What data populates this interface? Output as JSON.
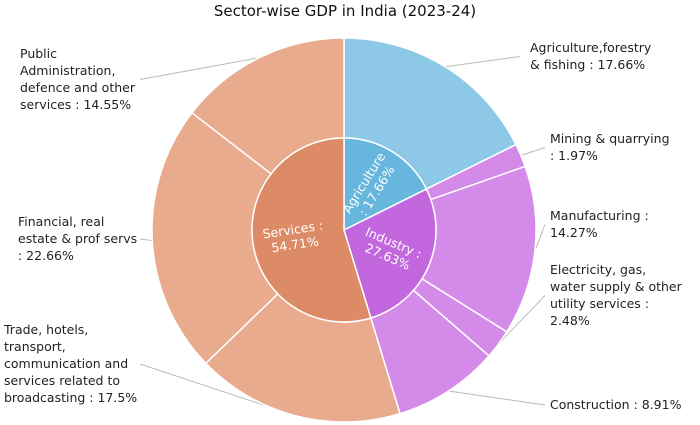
{
  "chart_data": {
    "type": "sunburst",
    "title": "Sector-wise GDP in India (2023-24)",
    "colors": {
      "agriculture_inner": "#67b6dd",
      "agriculture_outer": "#8dc8e6",
      "industry_inner": "#c267dd",
      "industry_outer": "#d48ae8",
      "services_inner": "#dd8a67",
      "services_outer": "#e8ab8d",
      "border": "#ffffff"
    },
    "inner": [
      {
        "name": "Agriculture",
        "value": 17.66,
        "label_lines": [
          "Agriculture",
          ": 17.66%"
        ],
        "color_key": "agriculture_inner"
      },
      {
        "name": "Industry",
        "value": 27.63,
        "label_lines": [
          "Industry :",
          "27.63%"
        ],
        "color_key": "industry_inner"
      },
      {
        "name": "Services",
        "value": 54.71,
        "label_lines": [
          "Services :",
          "54.71%"
        ],
        "color_key": "services_inner"
      }
    ],
    "outer": [
      {
        "name": "Agriculture,forestry & fishing",
        "value": 17.66,
        "parent": "Agriculture",
        "color_key": "agriculture_outer",
        "label_lines": [
          "Agriculture,forestry",
          "& fishing : 17.66%"
        ]
      },
      {
        "name": "Mining & quarrying",
        "value": 1.97,
        "parent": "Industry",
        "color_key": "industry_outer",
        "label_lines": [
          "Mining & quarrying",
          ": 1.97%"
        ]
      },
      {
        "name": "Manufacturing",
        "value": 14.27,
        "parent": "Industry",
        "color_key": "industry_outer",
        "label_lines": [
          "Manufacturing :",
          "14.27%"
        ]
      },
      {
        "name": "Electricity, gas, water supply & other utility services",
        "value": 2.48,
        "parent": "Industry",
        "color_key": "industry_outer",
        "label_lines": [
          "Electricity, gas,",
          "water supply & other",
          "utility services :",
          "2.48%"
        ]
      },
      {
        "name": "Construction",
        "value": 8.91,
        "parent": "Industry",
        "color_key": "industry_outer",
        "label_lines": [
          "Construction : 8.91%"
        ]
      },
      {
        "name": "Trade, hotels, transport, communication and services related to broadcasting",
        "value": 17.5,
        "parent": "Services",
        "color_key": "services_outer",
        "label_lines": [
          "Trade, hotels,",
          "transport,",
          "communication and",
          "services related to",
          "broadcasting : 17.5%"
        ]
      },
      {
        "name": "Financial, real estate & prof servs",
        "value": 22.66,
        "parent": "Services",
        "color_key": "services_outer",
        "label_lines": [
          "Financial, real",
          "estate & prof servs",
          ": 22.66%"
        ]
      },
      {
        "name": "Public Administration, defence and other services",
        "value": 14.55,
        "parent": "Services",
        "color_key": "services_outer",
        "label_lines": [
          "Public",
          "Administration,",
          "defence and other",
          "services : 14.55%"
        ]
      }
    ]
  }
}
